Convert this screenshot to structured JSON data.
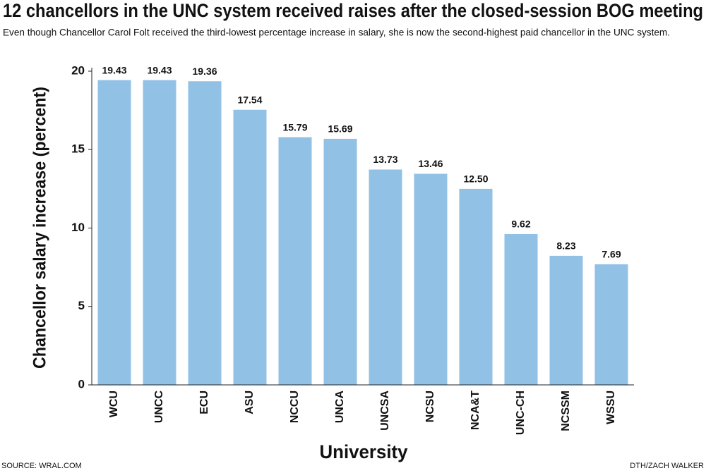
{
  "chart_data": {
    "type": "bar",
    "title": "12 chancellors in the UNC system received raises after the closed-session BOG meeting",
    "subtitle": "Even though Chancellor Carol Folt received the third-lowest percentage increase in salary, she is now the second-highest paid chancellor in the UNC system.",
    "y_label": "Chancellor salary increase (percent)",
    "x_label": "University",
    "source": "SOURCE: WRAL.COM",
    "credit": "DTH/ZACH WALKER",
    "categories": [
      "WCU",
      "UNCC",
      "ECU",
      "ASU",
      "NCCU",
      "UNCA",
      "UNCSA",
      "NCSU",
      "NCA&T",
      "UNC-CH",
      "NCSSM",
      "WSSU"
    ],
    "values": [
      19.43,
      19.43,
      19.36,
      17.54,
      15.79,
      15.69,
      13.73,
      13.46,
      12.5,
      9.62,
      8.23,
      7.69
    ],
    "value_labels": [
      "19.43",
      "19.43",
      "19.36",
      "17.54",
      "15.79",
      "15.69",
      "13.73",
      "13.46",
      "12.50",
      "9.62",
      "8.23",
      "7.69"
    ],
    "color": "#92c1e6",
    "ylim": [
      0,
      20
    ],
    "yticks": [
      0,
      5,
      10,
      15,
      20
    ],
    "grid": false
  }
}
